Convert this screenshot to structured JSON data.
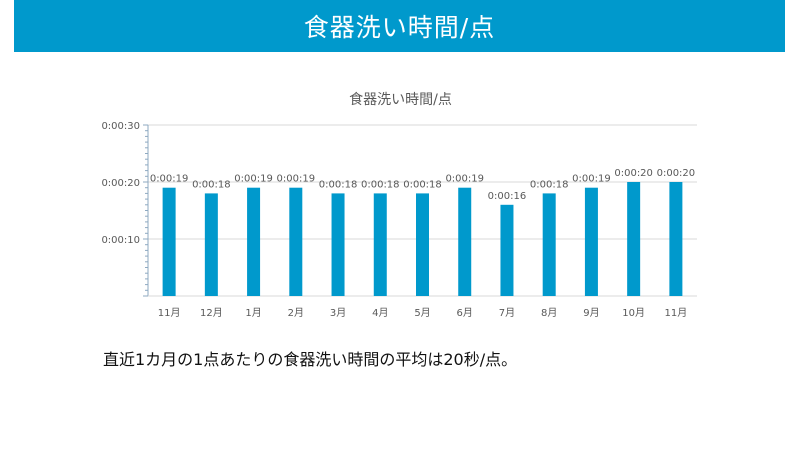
{
  "slide": {
    "title": "食器洗い時間/点",
    "note": "直近1カ月の1点あたりの食器洗い時間の平均は20秒/点。"
  },
  "colors": {
    "banner": "#0099cc",
    "bar": "#0099cc",
    "axis_text": "#595959",
    "grid": "#d9d9d9"
  },
  "chart_data": {
    "type": "bar",
    "title": "食器洗い時間/点",
    "categories": [
      "11月",
      "12月",
      "1月",
      "2月",
      "3月",
      "4月",
      "5月",
      "6月",
      "7月",
      "8月",
      "9月",
      "10月",
      "11月"
    ],
    "values": [
      19,
      18,
      19,
      19,
      18,
      18,
      18,
      19,
      16,
      18,
      19,
      20,
      20
    ],
    "value_labels": [
      "0:00:19",
      "0:00:18",
      "0:00:19",
      "0:00:19",
      "0:00:18",
      "0:00:18",
      "0:00:18",
      "0:00:19",
      "0:00:16",
      "0:00:18",
      "0:00:19",
      "0:00:20",
      "0:00:20"
    ],
    "y_unit": "seconds",
    "ylim": [
      0,
      30
    ],
    "yticks": [
      10,
      20,
      30
    ],
    "ytick_labels": [
      "0:00:10",
      "0:00:20",
      "0:00:30"
    ],
    "grid": true,
    "legend": "none"
  }
}
